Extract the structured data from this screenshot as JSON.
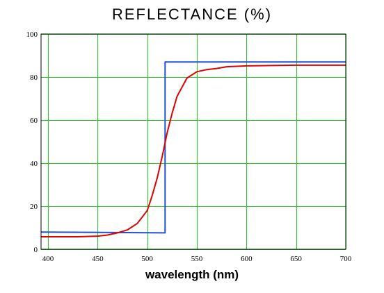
{
  "chart_data": {
    "type": "line",
    "title": "REFLECTANCE (%)",
    "xlabel": "wavelength (nm)",
    "ylabel": "",
    "xlim": [
      393,
      700
    ],
    "ylim": [
      0,
      100
    ],
    "x_ticks": [
      400,
      450,
      500,
      550,
      600,
      650,
      700
    ],
    "y_ticks": [
      0,
      20,
      40,
      60,
      80,
      100
    ],
    "grid": true,
    "grid_color": "#22cc22",
    "series": [
      {
        "color": "#1f4fd6",
        "x": [
          393,
          518,
          518,
          700
        ],
        "y": [
          8,
          7.6,
          87,
          87
        ]
      },
      {
        "color": "#e00000",
        "x": [
          393,
          430,
          450,
          460,
          470,
          480,
          490,
          500,
          505,
          510,
          515,
          520,
          525,
          530,
          540,
          550,
          560,
          570,
          580,
          600,
          650,
          700
        ],
        "y": [
          5.8,
          5.8,
          6.1,
          6.6,
          7.6,
          9,
          12,
          18,
          25,
          33,
          43,
          54,
          63,
          71,
          79.5,
          82.5,
          83.5,
          84,
          84.8,
          85.2,
          85.5,
          85.5
        ]
      }
    ]
  }
}
